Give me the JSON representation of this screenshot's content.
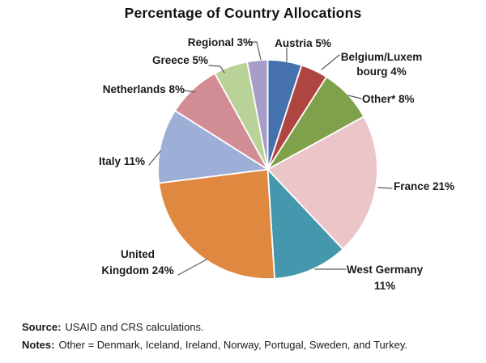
{
  "chart_data": {
    "type": "pie",
    "title": "Percentage of Country Allocations",
    "value_unit": "%",
    "start_angle_deg": 0,
    "direction": "clockwise",
    "legend_position": "outside-labels",
    "slices": [
      {
        "label": "Austria",
        "value": 5,
        "display": "Austria 5%",
        "color": "#4572AC"
      },
      {
        "label": "Belgium/Luxembourg",
        "value": 4,
        "display": "Belgium/Luxem\nbourg 4%",
        "color": "#AE4540"
      },
      {
        "label": "Other*",
        "value": 8,
        "display": "Other* 8%",
        "color": "#80A14B"
      },
      {
        "label": "France",
        "value": 21,
        "display": "France 21%",
        "color": "#ECC5C9"
      },
      {
        "label": "West Germany",
        "value": 11,
        "display": "West Germany\n11%",
        "color": "#4497AC"
      },
      {
        "label": "United Kingdom",
        "value": 24,
        "display": "United\nKingdom 24%",
        "color": "#DE8840"
      },
      {
        "label": "Italy",
        "value": 11,
        "display": "Italy 11%",
        "color": "#9DAFD7"
      },
      {
        "label": "Netherlands",
        "value": 8,
        "display": "Netherlands 8%",
        "color": "#D18D93"
      },
      {
        "label": "Greece",
        "value": 5,
        "display": "Greece 5%",
        "color": "#B9D297"
      },
      {
        "label": "Regional",
        "value": 3,
        "display": "Regional 3%",
        "color": "#A89DC8"
      }
    ],
    "leader_line_color": "#595959"
  },
  "footnotes": {
    "source_label": "Source:",
    "source_text": "USAID and CRS calculations.",
    "notes_label": "Notes:",
    "notes_text": "Other = Denmark, Iceland, Ireland, Norway, Portugal, Sweden, and Turkey."
  }
}
